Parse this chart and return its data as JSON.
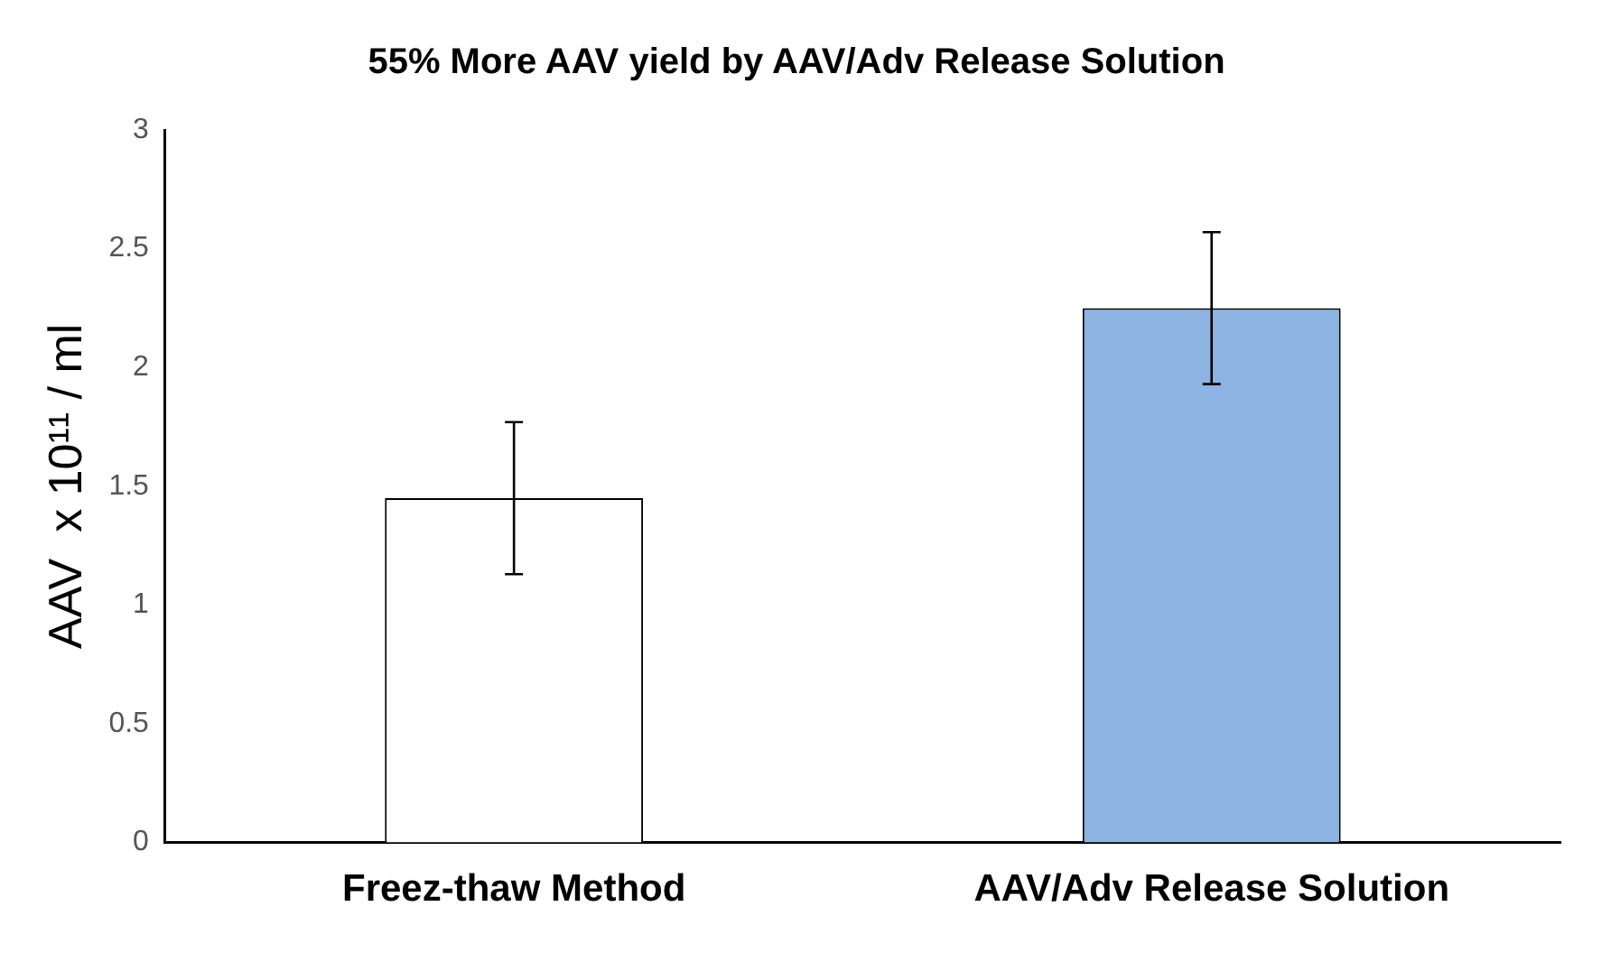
{
  "chart_data": {
    "type": "bar",
    "title": "55% More AAV yield by AAV/Adv Release Solution",
    "ylabel": "AAV  x 10¹¹ / ml",
    "categories": [
      "Freez-thaw Method",
      "AAV/Adv Release Solution"
    ],
    "values": [
      1.45,
      2.25
    ],
    "errors": [
      0.32,
      [
        1.93,
        2.57
      ]
    ],
    "colors": [
      "#ffffff",
      "#8db3e2"
    ],
    "ylim": [
      0,
      3
    ],
    "yticks": [
      0,
      0.5,
      1,
      1.5,
      2,
      2.5,
      3
    ],
    "grid": false,
    "legend": false
  }
}
